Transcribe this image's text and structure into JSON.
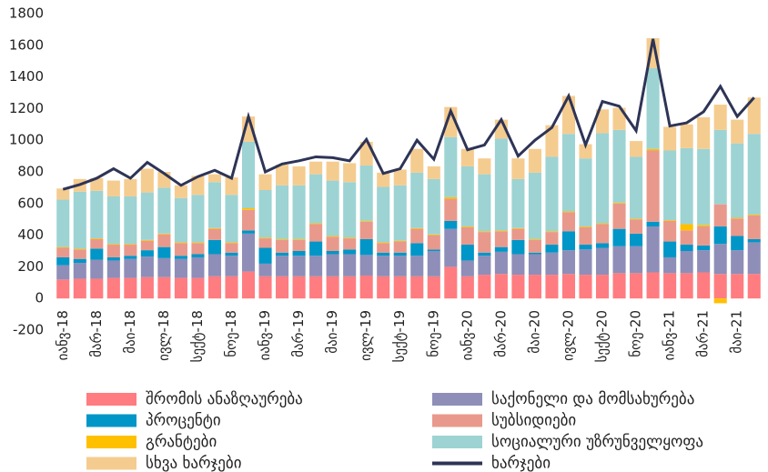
{
  "chart_data": {
    "type": "stacked_bar_line",
    "categories": [
      "იანვ-18",
      null,
      "მარ-18",
      null,
      "მაი-18",
      null,
      "ივლ-18",
      null,
      "სექტ-18",
      null,
      "ნოე-18",
      null,
      "იანვ-19",
      null,
      "მარ-19",
      null,
      "მაი-19",
      null,
      "ივლ-19",
      null,
      "სექტ-19",
      null,
      "ნოე-19",
      null,
      "იანვ-20",
      null,
      "მარ-20",
      null,
      "მაი-20",
      null,
      "ივლ-20",
      null,
      "სექტ-20",
      null,
      "ნოე-20",
      null,
      "იანვ-21",
      null,
      "მარ-21",
      null,
      "მაი-21",
      null
    ],
    "series": [
      {
        "name": "შრომის ანაზღაურება",
        "color": "#ff7c80",
        "values": [
          120,
          125,
          125,
          130,
          130,
          135,
          135,
          130,
          130,
          140,
          140,
          170,
          140,
          140,
          140,
          140,
          140,
          140,
          145,
          140,
          140,
          140,
          140,
          200,
          140,
          150,
          155,
          150,
          150,
          150,
          155,
          150,
          150,
          160,
          160,
          165,
          160,
          160,
          165,
          155,
          155,
          155
        ]
      },
      {
        "name": "საქონელი და მომსახურება",
        "color": "#8e8eb8",
        "values": [
          90,
          100,
          120,
          110,
          120,
          130,
          120,
          120,
          130,
          140,
          130,
          240,
          80,
          130,
          130,
          130,
          140,
          140,
          130,
          130,
          130,
          130,
          160,
          240,
          100,
          120,
          140,
          130,
          130,
          140,
          150,
          160,
          170,
          170,
          170,
          290,
          100,
          140,
          140,
          190,
          150,
          200
        ]
      },
      {
        "name": "პროცენტი",
        "color": "#0096c8",
        "values": [
          50,
          25,
          70,
          20,
          20,
          40,
          70,
          20,
          20,
          90,
          20,
          20,
          100,
          20,
          30,
          90,
          20,
          30,
          100,
          20,
          20,
          80,
          10,
          50,
          100,
          20,
          30,
          90,
          10,
          50,
          120,
          30,
          30,
          110,
          80,
          30,
          100,
          40,
          30,
          110,
          90,
          20
        ]
      },
      {
        "name": "სუბსიდიები",
        "color": "#e8998c",
        "values": [
          60,
          60,
          60,
          80,
          70,
          60,
          80,
          80,
          70,
          70,
          60,
          130,
          60,
          80,
          70,
          110,
          90,
          70,
          110,
          60,
          70,
          90,
          90,
          140,
          110,
          130,
          100,
          70,
          80,
          80,
          120,
          110,
          120,
          160,
          90,
          450,
          130,
          90,
          120,
          140,
          110,
          150
        ]
      },
      {
        "name": "გრანტები",
        "color": "#ffc000",
        "values": [
          5,
          5,
          5,
          5,
          5,
          5,
          5,
          5,
          5,
          5,
          5,
          10,
          5,
          5,
          5,
          5,
          5,
          5,
          5,
          5,
          5,
          5,
          5,
          10,
          5,
          5,
          5,
          5,
          5,
          5,
          5,
          5,
          5,
          5,
          5,
          10,
          5,
          40,
          10,
          -30,
          5,
          5
        ]
      },
      {
        "name": "სოციალური უზრუნველყოფა",
        "color": "#9dd3d3",
        "values": [
          300,
          360,
          300,
          300,
          300,
          300,
          290,
          280,
          300,
          290,
          300,
          420,
          300,
          340,
          340,
          310,
          350,
          350,
          350,
          350,
          350,
          350,
          350,
          380,
          380,
          360,
          580,
          310,
          420,
          470,
          490,
          430,
          570,
          460,
          390,
          510,
          440,
          480,
          480,
          470,
          470,
          510
        ]
      },
      {
        "name": "სხვა ხარჯები",
        "color": "#f5cc8f",
        "values": [
          70,
          80,
          80,
          100,
          110,
          150,
          100,
          80,
          120,
          50,
          110,
          160,
          100,
          130,
          120,
          80,
          120,
          120,
          150,
          90,
          100,
          150,
          80,
          190,
          110,
          100,
          120,
          130,
          150,
          200,
          240,
          90,
          150,
          140,
          100,
          190,
          150,
          150,
          200,
          160,
          150,
          230
        ]
      },
      {
        "name": "ხარჯები",
        "color": "#2e3456",
        "kind": "line",
        "values": [
          690,
          720,
          760,
          820,
          760,
          860,
          790,
          715,
          770,
          810,
          760,
          1150,
          800,
          850,
          870,
          895,
          890,
          870,
          1005,
          790,
          820,
          1000,
          880,
          1185,
          940,
          970,
          1130,
          900,
          1000,
          1080,
          1280,
          970,
          1245,
          1215,
          1060,
          1640,
          1090,
          1110,
          1180,
          1340,
          1150,
          1270
        ]
      }
    ],
    "ylim": [
      -200,
      1800
    ],
    "yticks": [
      -200,
      0,
      200,
      400,
      600,
      800,
      1000,
      1200,
      1400,
      1600,
      1800
    ],
    "grid": false
  }
}
